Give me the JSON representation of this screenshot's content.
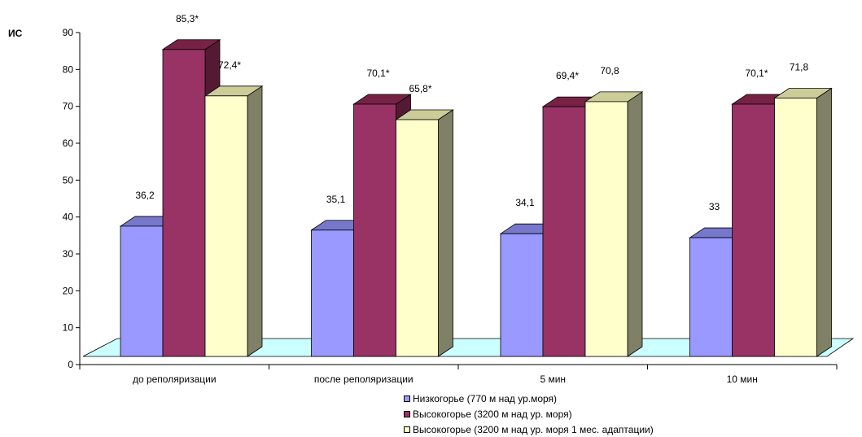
{
  "chart_data": {
    "type": "bar",
    "title": "",
    "ylabel": "ИС",
    "xlabel": "",
    "ylim": [
      0,
      90
    ],
    "yticks": [
      0,
      10,
      20,
      30,
      40,
      50,
      60,
      70,
      80,
      90
    ],
    "categories": [
      "до реполяризации",
      "после реполяризации",
      "5 мин",
      "10 мин"
    ],
    "legend_position": "bottom",
    "grid": false,
    "series": [
      {
        "name": "Низкогорье (770 м над ур.моря)",
        "color": "#9999ff",
        "values": [
          36.2,
          35.1,
          34.1,
          33
        ],
        "labels": [
          "36,2",
          "35,1",
          "34,1",
          "33"
        ]
      },
      {
        "name": "Высокогорье (3200 м над ур. моря)",
        "color": "#993366",
        "values": [
          85.3,
          70.1,
          69.4,
          70.1
        ],
        "labels": [
          "85,3*",
          "70,1*",
          "69,4*",
          "70,1*"
        ]
      },
      {
        "name": "Высокогорье (3200 м над ур. моря 1 мес. адаптации)",
        "color": "#ffffcc",
        "values": [
          72.4,
          65.8,
          70.8,
          71.8
        ],
        "labels": [
          "72,4*",
          "65,8*",
          "70,8",
          "71,8"
        ]
      }
    ],
    "floor_color": "#ccffff"
  }
}
